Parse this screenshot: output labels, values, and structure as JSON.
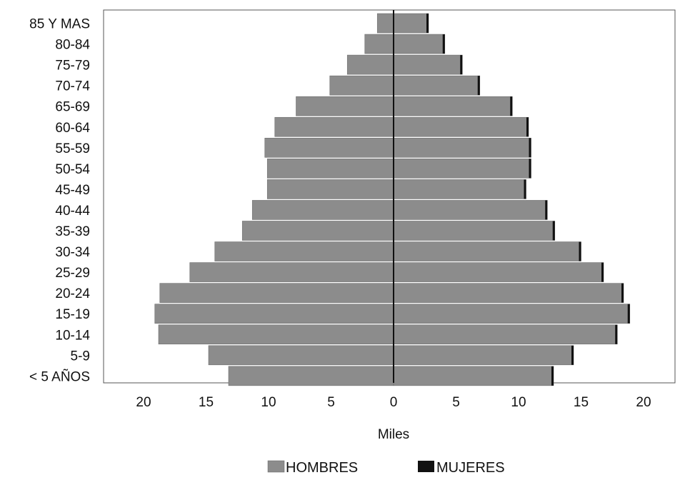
{
  "chart_data": {
    "type": "bar",
    "orientation": "horizontal",
    "layout": "population-pyramid",
    "xlabel": "Miles",
    "categories": [
      "85 Y MAS",
      "80-84",
      "75-79",
      "70-74",
      "65-69",
      "60-64",
      "55-59",
      "50-54",
      "45-49",
      "40-44",
      "35-39",
      "30-34",
      "25-29",
      "20-24",
      "15-19",
      "10-14",
      "5-9",
      "< 5 AÑOS"
    ],
    "series": [
      {
        "name": "HOMBRES",
        "side": "left",
        "color": "#8c8c8c",
        "values": [
          1.3,
          2.3,
          3.7,
          5.1,
          7.8,
          9.5,
          10.3,
          10.1,
          10.1,
          11.3,
          12.1,
          14.3,
          16.3,
          18.7,
          19.1,
          18.8,
          14.8,
          13.2
        ]
      },
      {
        "name": "MUJERES",
        "side": "right",
        "color": "#111111",
        "values": [
          2.8,
          4.1,
          5.5,
          6.9,
          9.5,
          10.8,
          11.0,
          11.0,
          10.6,
          12.3,
          12.9,
          15.0,
          16.8,
          18.4,
          18.9,
          17.9,
          14.4,
          12.8
        ]
      }
    ],
    "xticks": [
      20,
      15,
      10,
      5,
      0,
      5,
      10,
      15,
      20
    ],
    "xlim": [
      -22.5,
      22.5
    ],
    "grid": false,
    "legend_position": "bottom"
  }
}
